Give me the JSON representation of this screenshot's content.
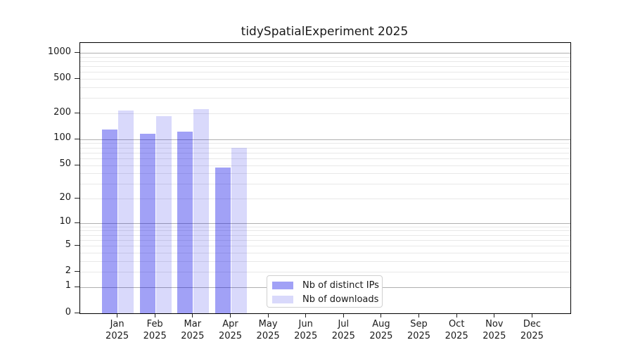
{
  "chart_data": {
    "type": "bar",
    "title": "tidySpatialExperiment 2025",
    "months": [
      "Jan",
      "Feb",
      "Mar",
      "Apr",
      "May",
      "Jun",
      "Jul",
      "Aug",
      "Sep",
      "Oct",
      "Nov",
      "Dec"
    ],
    "year": "2025",
    "series": [
      {
        "name": "Nb of distinct IPs",
        "values": [
          130,
          115,
          122,
          47,
          null,
          null,
          null,
          null,
          null,
          null,
          null,
          null
        ]
      },
      {
        "name": "Nb of downloads",
        "values": [
          216,
          185,
          225,
          80,
          null,
          null,
          null,
          null,
          null,
          null,
          null,
          null
        ]
      }
    ],
    "yscale": "log1p",
    "ylim": [
      0,
      1300
    ],
    "yticks": [
      0,
      1,
      2,
      5,
      10,
      20,
      50,
      100,
      200,
      500,
      1000
    ],
    "major_gridlines": [
      1,
      10,
      100,
      1000
    ],
    "legend_position": "lower center",
    "grid": true,
    "colors": {
      "ips_bar": "rgba(0,0,230,0.37)",
      "downloads_bar": "rgba(0,0,230,0.15)",
      "grid_major": "#b0b0b0",
      "grid_minor": "#e8e8e8",
      "axis": "#000000",
      "text": "#1a1a1a"
    }
  }
}
